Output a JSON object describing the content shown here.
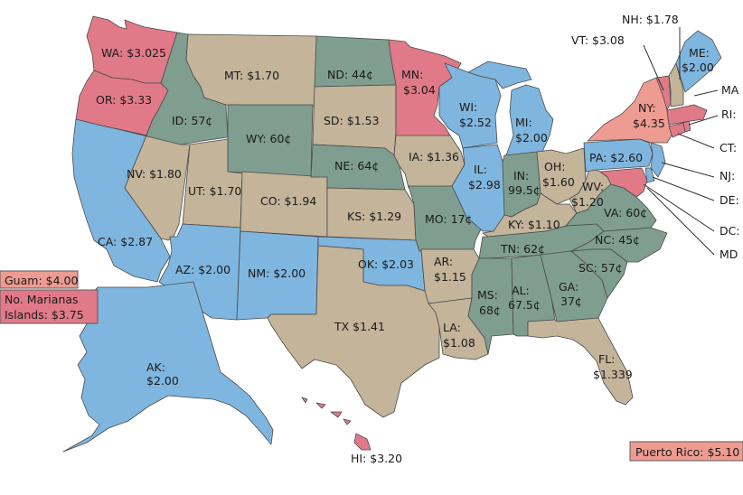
{
  "colors": {
    "red": "#e17a88",
    "salmon": "#ee9c92",
    "blue": "#7fb6df",
    "teal": "#7f9e8f",
    "tan": "#c3b49a"
  },
  "states": {
    "WA": "WA: $3.025",
    "OR": "OR: $3.33",
    "CA": "CA: $2.87",
    "ID": "ID: 57¢",
    "NV": "NV: $1.80",
    "MT": "MT: $1.70",
    "WY": "WY: 60¢",
    "UT": "UT: $1.70",
    "CO": "CO: $1.94",
    "AZ": "AZ: $2.00",
    "NM": "NM: $2.00",
    "ND": "ND: 44¢",
    "SD": "SD: $1.53",
    "NE": "NE: 64¢",
    "KS": "KS: $1.29",
    "OK": "OK: $2.03",
    "TX": "TX $1.41",
    "MN_1": "MN:",
    "MN_2": "$3.04",
    "IA": "IA: $1.36",
    "MO": "MO: 17¢",
    "AR_1": "AR:",
    "AR_2": "$1.15",
    "LA_1": "LA:",
    "LA_2": "$1.08",
    "WI_1": "WI:",
    "WI_2": "$2.52",
    "IL_1": "IL:",
    "IL_2": "$2.98",
    "MI_1": "MI:",
    "MI_2": "$2.00",
    "IN_1": "IN:",
    "IN_2": "99.5¢",
    "OH_1": "OH:",
    "OH_2": "$1.60",
    "KY": "KY: $1.10",
    "TN": "TN: 62¢",
    "MS_1": "MS:",
    "MS_2": "68¢",
    "AL_1": "AL:",
    "AL_2": "67.5¢",
    "GA_1": "GA:",
    "GA_2": "37¢",
    "FL_1": "FL:",
    "FL_2": "$1.339",
    "SC": "SC: 57¢",
    "NC": "NC: 45¢",
    "VA": "VA: 60¢",
    "WV_1": "WV:",
    "WV_2": "$1.20",
    "PA": "PA: $2.60",
    "NY_1": "NY:",
    "NY_2": "$4.35",
    "ME_1": "ME:",
    "ME_2": "$2.00",
    "NH": "NH: $1.78",
    "VT": "VT: $3.08",
    "MA": "MA",
    "RI": "RI:",
    "CT": "CT:",
    "NJ": "NJ:",
    "DE": "DE:",
    "DC": "DC:",
    "MD": "MD",
    "AK_1": "AK:",
    "AK_2": "$2.00",
    "HI": "HI: $3.20"
  },
  "territories": {
    "guam": "Guam: $4.00",
    "marianas_1": "No. Marianas",
    "marianas_2": "Islands: $3.75",
    "puerto_rico": "Puerto Rico: $5.10"
  }
}
